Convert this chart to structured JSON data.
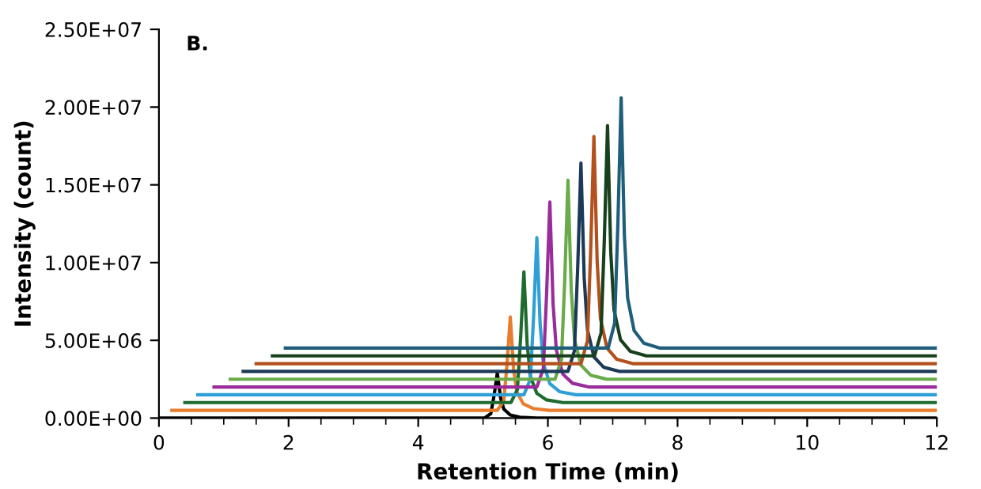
{
  "chart_data": {
    "type": "line",
    "title": "B.",
    "xlabel": "Retention Time (min)",
    "ylabel": "Intensity (count)",
    "xlim": [
      0,
      12
    ],
    "xticks": [
      0,
      2,
      4,
      6,
      8,
      10,
      12
    ],
    "ylim": [
      0,
      25000000
    ],
    "yticks": [
      {
        "value": 0,
        "label": "0.00E+00"
      },
      {
        "value": 5000000,
        "label": "5.00E+06"
      },
      {
        "value": 10000000,
        "label": "1.00E+07"
      },
      {
        "value": 15000000,
        "label": "1.50E+07"
      },
      {
        "value": 20000000,
        "label": "2.00E+07"
      },
      {
        "value": 25000000,
        "label": "2.50E+07"
      }
    ],
    "grid": false,
    "legend": false,
    "marker": "none",
    "line_style": "solid",
    "series": [
      {
        "color": "#000000",
        "x": [
          0,
          5.02,
          5.12,
          5.17,
          5.22,
          5.27,
          5.32,
          5.42,
          5.57,
          5.82,
          12
        ],
        "values": [
          0,
          0,
          290000,
          1450000,
          2900000,
          1300000,
          580000,
          200000,
          60000,
          0,
          0
        ]
      },
      {
        "color": "#e87d2e",
        "x": [
          0.2,
          5.22,
          5.32,
          5.37,
          5.42,
          5.47,
          5.52,
          5.62,
          5.77,
          6.02,
          12
        ],
        "values": [
          500000,
          500000,
          1100000,
          3500000,
          6500000,
          3200000,
          1700000,
          920000,
          620000,
          500000,
          500000
        ]
      },
      {
        "color": "#1e6b2e",
        "x": [
          0.4,
          5.43,
          5.53,
          5.58,
          5.63,
          5.68,
          5.73,
          5.83,
          5.98,
          6.23,
          12
        ],
        "values": [
          1000000,
          1000000,
          1840000,
          5200000,
          9400000,
          4780000,
          2680000,
          1590000,
          1170000,
          1000000,
          1000000
        ]
      },
      {
        "color": "#2f9fd6",
        "x": [
          0.6,
          5.63,
          5.73,
          5.78,
          5.83,
          5.88,
          5.93,
          6.03,
          6.18,
          6.43,
          12
        ],
        "values": [
          1500000,
          1500000,
          2510000,
          6550000,
          11600000,
          6050000,
          3520000,
          2210000,
          1700000,
          1500000,
          1500000
        ]
      },
      {
        "color": "#9b2c9b",
        "x": [
          0.85,
          5.83,
          5.93,
          5.98,
          6.03,
          6.08,
          6.13,
          6.23,
          6.38,
          6.63,
          12
        ],
        "values": [
          2000000,
          2000000,
          3190000,
          7950000,
          13900000,
          7360000,
          4380000,
          2830000,
          2240000,
          2000000,
          2000000
        ]
      },
      {
        "color": "#6aaa4a",
        "x": [
          1.1,
          6.11,
          6.21,
          6.26,
          6.31,
          6.36,
          6.41,
          6.51,
          6.66,
          6.91,
          12
        ],
        "values": [
          2500000,
          2500000,
          3780000,
          8900000,
          15300000,
          8260000,
          5060000,
          3400000,
          2760000,
          2500000,
          2500000
        ]
      },
      {
        "color": "#1c3a57",
        "x": [
          1.3,
          6.31,
          6.41,
          6.46,
          6.51,
          6.56,
          6.61,
          6.71,
          6.86,
          7.11,
          12
        ],
        "values": [
          3000000,
          3000000,
          4340000,
          9700000,
          16400000,
          9030000,
          5680000,
          3940000,
          3270000,
          3000000,
          3000000
        ]
      },
      {
        "color": "#b2501e",
        "x": [
          1.5,
          6.51,
          6.61,
          6.66,
          6.71,
          6.76,
          6.81,
          6.91,
          7.06,
          7.31,
          12
        ],
        "values": [
          3500000,
          3500000,
          4960000,
          10800000,
          18100000,
          10070000,
          6420000,
          4520000,
          3790000,
          3500000,
          3500000
        ]
      },
      {
        "color": "#17401c",
        "x": [
          1.75,
          6.72,
          6.82,
          6.87,
          6.92,
          6.97,
          7.02,
          7.12,
          7.27,
          7.52,
          12
        ],
        "values": [
          4000000,
          4000000,
          5480000,
          11400000,
          18800000,
          10660000,
          6960000,
          5040000,
          4300000,
          4000000,
          4000000
        ]
      },
      {
        "color": "#1f5e7a",
        "x": [
          1.95,
          6.93,
          7.03,
          7.08,
          7.13,
          7.18,
          7.23,
          7.33,
          7.48,
          7.73,
          12
        ],
        "values": [
          4500000,
          4500000,
          6110000,
          12550000,
          20600000,
          11750000,
          7720000,
          5630000,
          4820000,
          4500000,
          4500000
        ]
      }
    ]
  }
}
